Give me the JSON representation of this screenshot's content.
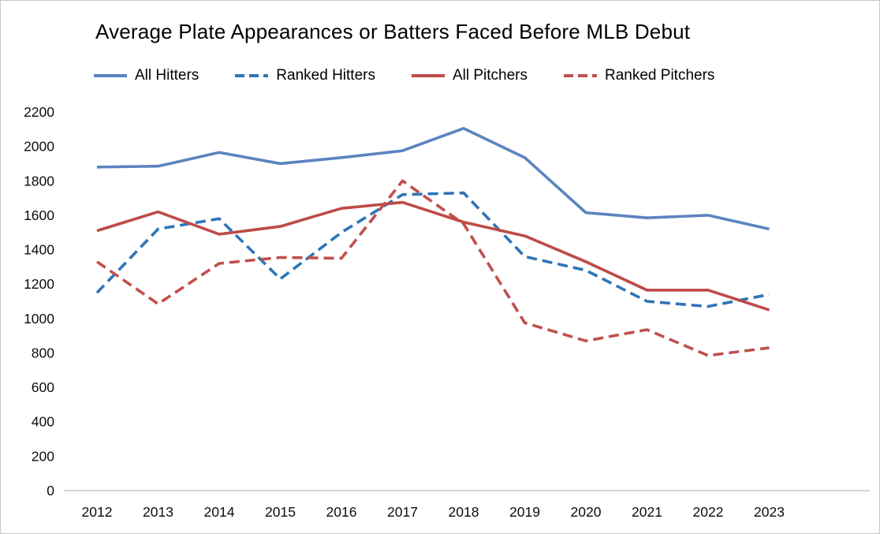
{
  "title": "Average Plate Appearances or Batters Faced Before MLB Debut",
  "chart_data": {
    "type": "line",
    "title": "Average Plate Appearances or Batters Faced Before MLB Debut",
    "x": [
      2012,
      2013,
      2014,
      2015,
      2016,
      2017,
      2018,
      2019,
      2020,
      2021,
      2022,
      2023
    ],
    "series": [
      {
        "name": "All Hitters",
        "color": "#5b84c0",
        "dash": false,
        "values": [
          1880,
          1885,
          1965,
          1900,
          1935,
          1975,
          2105,
          1935,
          1615,
          1585,
          1600,
          1520
        ]
      },
      {
        "name": "Ranked Hitters",
        "color": "#2e75b6",
        "dash": true,
        "values": [
          1150,
          1520,
          1580,
          1230,
          1500,
          1720,
          1730,
          1360,
          1280,
          1100,
          1070,
          1140
        ]
      },
      {
        "name": "All Pitchers",
        "color": "#be4b48",
        "dash": false,
        "values": [
          1510,
          1620,
          1490,
          1535,
          1640,
          1675,
          1560,
          1480,
          1330,
          1165,
          1165,
          1050
        ]
      },
      {
        "name": "Ranked Pitchers",
        "color": "#c0504d",
        "dash": true,
        "values": [
          1330,
          1085,
          1320,
          1355,
          1350,
          1800,
          1550,
          975,
          870,
          935,
          785,
          830
        ]
      }
    ],
    "xlabel": "",
    "ylabel": "",
    "ylim": [
      0,
      2200
    ],
    "ytick_step": 200,
    "grid": false,
    "legend_position": "top"
  }
}
